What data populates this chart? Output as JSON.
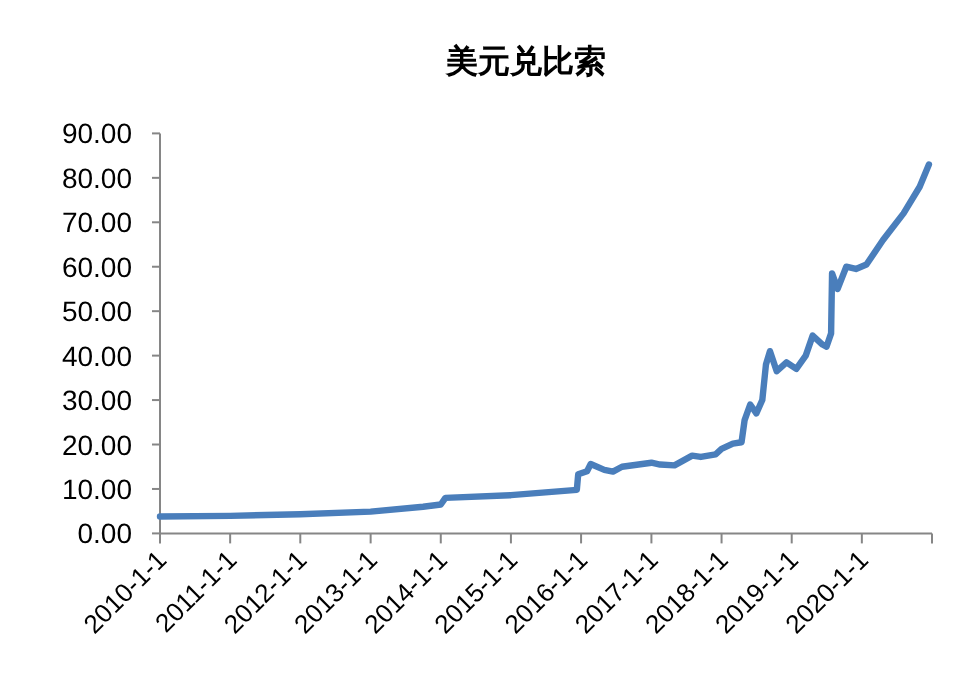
{
  "chart_data": {
    "type": "line",
    "title": "美元兑比索",
    "x": [
      "2010-01-01",
      "2011-01-01",
      "2012-01-01",
      "2013-01-01",
      "2013-10-01",
      "2014-01-01",
      "2014-01-25",
      "2015-01-01",
      "2015-12-10",
      "2015-12-17",
      "2016-02-01",
      "2016-02-20",
      "2016-05-01",
      "2016-06-15",
      "2016-08-01",
      "2017-01-01",
      "2017-02-15",
      "2017-05-01",
      "2017-08-01",
      "2017-09-15",
      "2017-12-01",
      "2018-01-01",
      "2018-03-01",
      "2018-04-15",
      "2018-05-01",
      "2018-05-30",
      "2018-07-01",
      "2018-08-01",
      "2018-08-20",
      "2018-09-10",
      "2018-10-15",
      "2018-12-05",
      "2019-01-25",
      "2019-03-15",
      "2019-04-20",
      "2019-06-10",
      "2019-07-01",
      "2019-07-25",
      "2019-07-30",
      "2019-08-28",
      "2019-10-12",
      "2019-12-01",
      "2020-01-25",
      "2020-04-20",
      "2020-08-05",
      "2020-10-28",
      "2020-12-15"
    ],
    "series": [
      {
        "color": "#4a7ebb",
        "values": [
          3.8,
          3.95,
          4.3,
          4.9,
          6.0,
          6.5,
          8.0,
          8.6,
          9.8,
          13.3,
          14.0,
          15.6,
          14.3,
          13.9,
          15.0,
          15.9,
          15.5,
          15.3,
          17.5,
          17.2,
          17.8,
          19.0,
          20.2,
          20.5,
          25.5,
          29,
          27,
          30,
          38,
          41,
          36.5,
          38.5,
          37,
          40,
          44.5,
          42.5,
          42,
          45,
          58.5,
          55,
          60,
          59.5,
          60.5,
          66,
          72,
          78,
          83
        ]
      }
    ],
    "xlim": [
      "2010-01-01",
      "2020-12-31"
    ],
    "xticks": [
      {
        "value": "2010-01-01",
        "label": "2010-1-1"
      },
      {
        "value": "2011-01-01",
        "label": "2011-1-1"
      },
      {
        "value": "2012-01-01",
        "label": "2012-1-1"
      },
      {
        "value": "2013-01-01",
        "label": "2013-1-1"
      },
      {
        "value": "2014-01-01",
        "label": "2014-1-1"
      },
      {
        "value": "2015-01-01",
        "label": "2015-1-1"
      },
      {
        "value": "2016-01-01",
        "label": "2016-1-1"
      },
      {
        "value": "2017-01-01",
        "label": "2017-1-1"
      },
      {
        "value": "2018-01-01",
        "label": "2018-1-1"
      },
      {
        "value": "2019-01-01",
        "label": "2019-1-1"
      },
      {
        "value": "2020-01-01",
        "label": "2020-1-1"
      }
    ],
    "ylim": [
      0,
      90
    ],
    "yticks": [
      {
        "value": 0,
        "label": "0.00"
      },
      {
        "value": 10,
        "label": "10.00"
      },
      {
        "value": 20,
        "label": "20.00"
      },
      {
        "value": 30,
        "label": "30.00"
      },
      {
        "value": 40,
        "label": "40.00"
      },
      {
        "value": 50,
        "label": "50.00"
      },
      {
        "value": 60,
        "label": "60.00"
      },
      {
        "value": 70,
        "label": "70.00"
      },
      {
        "value": 80,
        "label": "80.00"
      },
      {
        "value": 90,
        "label": "90.00"
      }
    ]
  }
}
